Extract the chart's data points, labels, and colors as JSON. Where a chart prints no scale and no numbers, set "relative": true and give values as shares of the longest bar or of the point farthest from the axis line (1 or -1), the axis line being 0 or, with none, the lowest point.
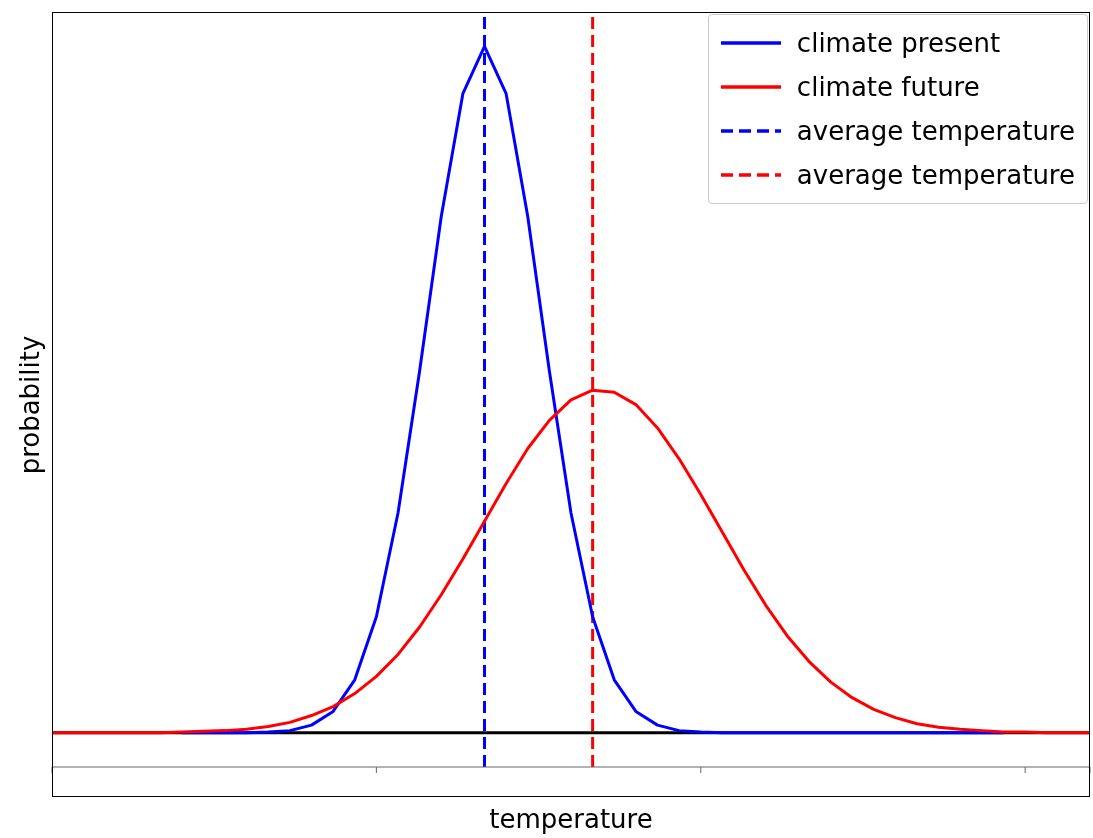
{
  "chart_data": {
    "type": "line",
    "relative": true,
    "xlabel": "temperature",
    "ylabel": "probability",
    "categories": [
      null,
      null,
      null,
      null,
      null,
      null,
      null,
      null,
      null,
      null,
      null,
      null,
      null,
      null,
      null,
      null,
      null,
      null,
      null,
      null,
      null,
      null,
      null,
      null,
      null,
      null,
      null,
      null,
      null,
      null,
      null,
      null,
      null,
      null,
      null,
      null,
      null,
      null,
      null,
      null,
      null,
      null,
      null,
      null,
      null,
      null,
      null,
      null,
      null
    ],
    "series": [
      {
        "name": "climate present",
        "color": "#0000ff",
        "values": [
          null,
          null,
          null,
          null,
          null,
          null,
          0,
          0,
          0,
          0,
          0.001,
          0.003,
          0.011,
          0.031,
          0.077,
          0.169,
          0.32,
          0.527,
          0.752,
          0.931,
          1,
          0.931,
          0.752,
          0.527,
          0.32,
          0.169,
          0.077,
          0.031,
          0.011,
          0.003,
          0.001,
          0,
          0,
          0,
          0,
          0,
          0,
          0,
          0,
          0,
          0,
          0,
          0,
          0,
          0,
          null,
          null,
          null,
          null
        ]
      },
      {
        "name": "climate future",
        "color": "#ff0000",
        "values": [
          0,
          0,
          0,
          0,
          0,
          0,
          0.001,
          0.002,
          0.003,
          0.005,
          0.009,
          0.015,
          0.025,
          0.038,
          0.057,
          0.082,
          0.114,
          0.154,
          0.201,
          0.253,
          0.308,
          0.363,
          0.414,
          0.455,
          0.485,
          0.499,
          0.496,
          0.478,
          0.444,
          0.399,
          0.347,
          0.292,
          0.237,
          0.186,
          0.141,
          0.104,
          0.074,
          0.051,
          0.034,
          0.022,
          0.013,
          0.008,
          0.005,
          0.003,
          0.001,
          0.001,
          0,
          0,
          0
        ]
      }
    ],
    "ref_lines": [
      {
        "axis": "x",
        "label": "average temperature",
        "color": "#0000ff",
        "line_style": "dashed"
      },
      {
        "axis": "x",
        "label": "average temperature",
        "color": "#ff0000",
        "line_style": "dashed"
      }
    ],
    "legend": "top right",
    "marker": "none",
    "line_style": "solid"
  }
}
